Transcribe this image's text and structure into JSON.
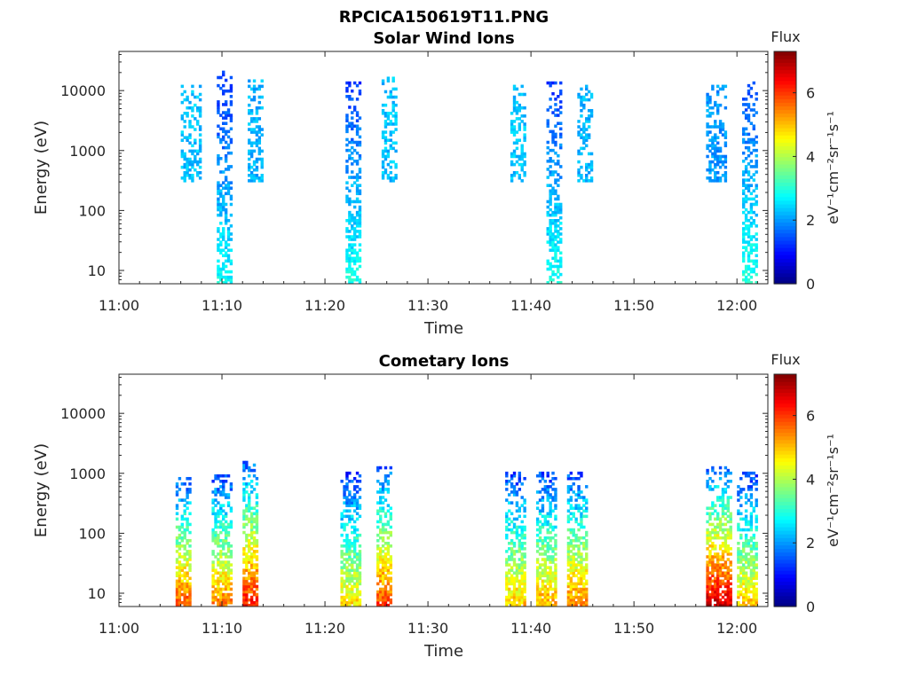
{
  "figure": {
    "title": "RPCICA150619T11.PNG"
  },
  "chart_data": [
    {
      "type": "heatmap",
      "title": "Solar Wind Ions",
      "xlabel": "Time",
      "ylabel": "Energy (eV)",
      "y_scale": "log",
      "xlim": [
        "11:00",
        "12:03"
      ],
      "ylim": [
        6,
        45000
      ],
      "x_ticks": [
        "11:00",
        "11:10",
        "11:20",
        "11:30",
        "11:40",
        "11:50",
        "12:00"
      ],
      "y_ticks": [
        "10",
        "100",
        "1000",
        "10000"
      ],
      "colorbar": {
        "label": "Flux",
        "unit_label": "eV⁻¹cm⁻²sr⁻¹s⁻¹",
        "range": [
          0,
          7.3
        ],
        "ticks": [
          "0",
          "2",
          "4",
          "6"
        ],
        "colormap": "jet"
      },
      "bursts": [
        {
          "t_start": "11:06",
          "t_end": "11:08",
          "e_min": 300,
          "e_max": 12000,
          "flux": 2.3
        },
        {
          "t_start": "11:09.5",
          "t_end": "11:10.8",
          "e_min": 6,
          "e_max": 20000,
          "flux": 1.2
        },
        {
          "t_start": "11:12.5",
          "t_end": "11:14",
          "e_min": 300,
          "e_max": 15000,
          "flux": 2.2
        },
        {
          "t_start": "11:22",
          "t_end": "11:23.5",
          "e_min": 6,
          "e_max": 15000,
          "flux": 1.3
        },
        {
          "t_start": "11:25.5",
          "t_end": "11:27",
          "e_min": 300,
          "e_max": 17000,
          "flux": 2.3
        },
        {
          "t_start": "11:38",
          "t_end": "11:39.5",
          "e_min": 300,
          "e_max": 12000,
          "flux": 2.3
        },
        {
          "t_start": "11:41.5",
          "t_end": "11:43",
          "e_min": 6,
          "e_max": 14000,
          "flux": 1.3
        },
        {
          "t_start": "11:44.5",
          "t_end": "11:46",
          "e_min": 300,
          "e_max": 12000,
          "flux": 2.2
        },
        {
          "t_start": "11:57",
          "t_end": "11:59",
          "e_min": 300,
          "e_max": 12000,
          "flux": 2.0
        },
        {
          "t_start": "12:00.5",
          "t_end": "12:02",
          "e_min": 6,
          "e_max": 15000,
          "flux": 1.4
        }
      ]
    },
    {
      "type": "heatmap",
      "title": "Cometary Ions",
      "xlabel": "Time",
      "ylabel": "Energy (eV)",
      "y_scale": "log",
      "xlim": [
        "11:00",
        "12:03"
      ],
      "ylim": [
        6,
        45000
      ],
      "x_ticks": [
        "11:00",
        "11:10",
        "11:20",
        "11:30",
        "11:40",
        "11:50",
        "12:00"
      ],
      "y_ticks": [
        "10",
        "100",
        "1000",
        "10000"
      ],
      "colorbar": {
        "label": "Flux",
        "unit_label": "eV⁻¹cm⁻²sr⁻¹s⁻¹",
        "range": [
          0,
          7.3
        ],
        "ticks": [
          "0",
          "2",
          "4",
          "6"
        ],
        "colormap": "jet"
      },
      "bursts": [
        {
          "t_start": "11:05.5",
          "t_end": "11:07",
          "e_min": 6,
          "e_max": 800,
          "flux": 5.8
        },
        {
          "t_start": "11:09",
          "t_end": "11:10.8",
          "e_min": 6,
          "e_max": 900,
          "flux": 5.5
        },
        {
          "t_start": "11:12",
          "t_end": "11:13.5",
          "e_min": 6,
          "e_max": 1500,
          "flux": 6.3
        },
        {
          "t_start": "11:21.5",
          "t_end": "11:23.5",
          "e_min": 6,
          "e_max": 1000,
          "flux": 4.8
        },
        {
          "t_start": "11:25",
          "t_end": "11:26.5",
          "e_min": 6,
          "e_max": 1200,
          "flux": 6.0
        },
        {
          "t_start": "11:37.5",
          "t_end": "11:39.5",
          "e_min": 6,
          "e_max": 1000,
          "flux": 5.0
        },
        {
          "t_start": "11:40.5",
          "t_end": "11:42.5",
          "e_min": 6,
          "e_max": 1000,
          "flux": 5.2
        },
        {
          "t_start": "11:43.5",
          "t_end": "11:45.5",
          "e_min": 6,
          "e_max": 1000,
          "flux": 5.5
        },
        {
          "t_start": "11:57",
          "t_end": "11:59.5",
          "e_min": 6,
          "e_max": 1200,
          "flux": 6.8
        },
        {
          "t_start": "12:00",
          "t_end": "12:02",
          "e_min": 6,
          "e_max": 1000,
          "flux": 5.0
        }
      ]
    }
  ]
}
